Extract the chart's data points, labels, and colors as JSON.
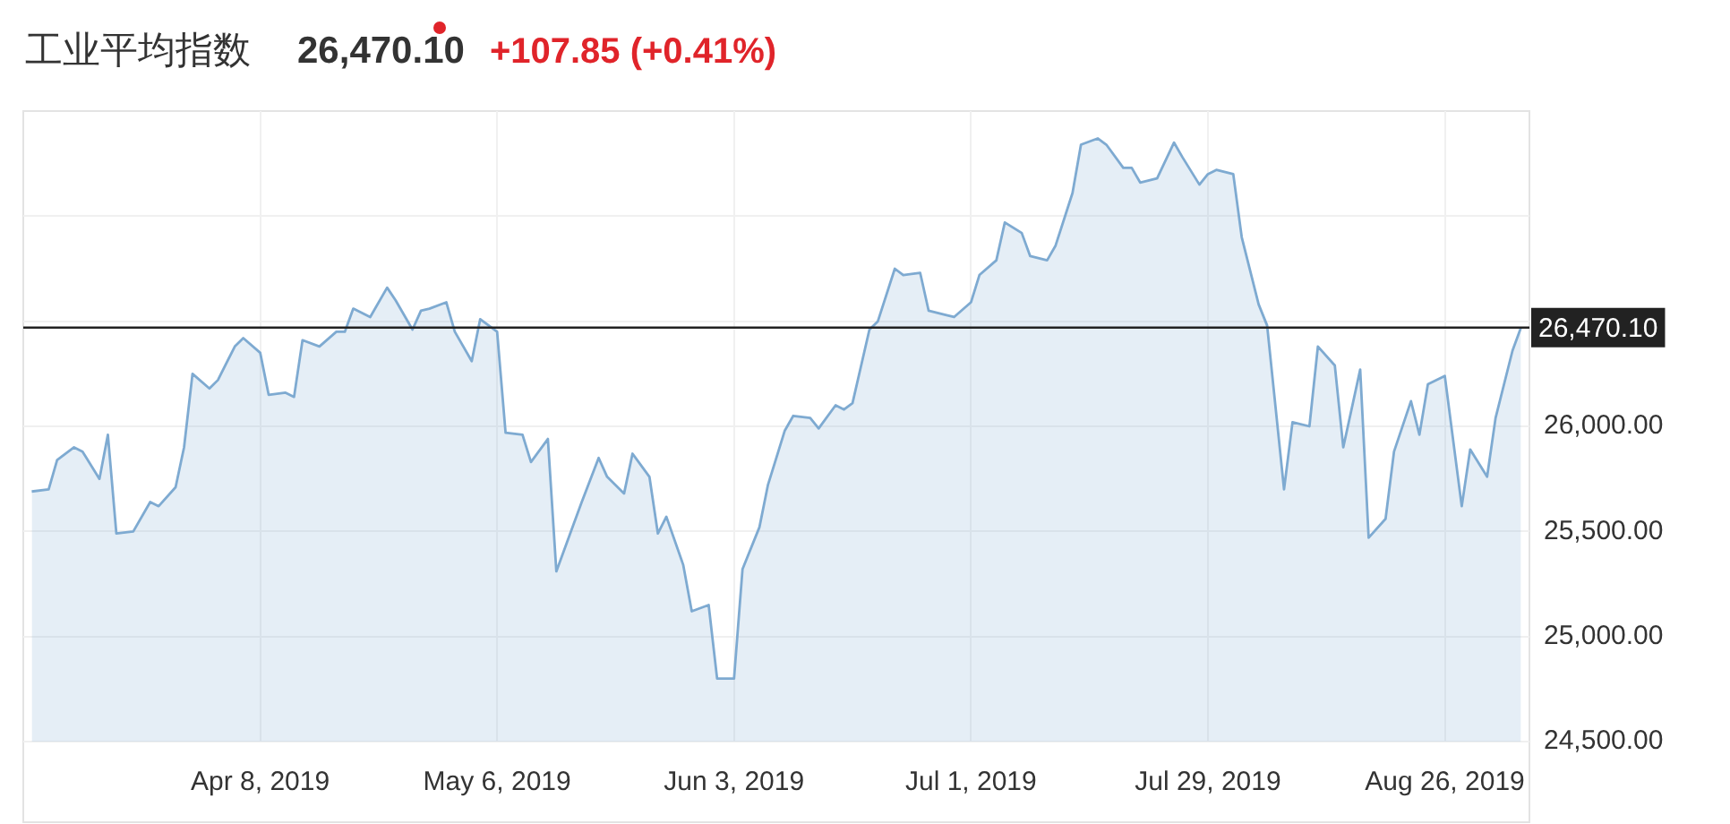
{
  "chart_data": {
    "type": "area",
    "title": "工业平均指数",
    "subtitle": "26,470.10",
    "annotations": [
      "+107.85 (+0.41%)"
    ],
    "x": [
      "2019-03-12",
      "2019-03-14",
      "2019-03-15",
      "2019-03-17",
      "2019-03-18",
      "2019-03-20",
      "2019-03-21",
      "2019-03-22",
      "2019-03-24",
      "2019-03-26",
      "2019-03-27",
      "2019-03-29",
      "2019-03-30",
      "2019-03-31",
      "2019-04-02",
      "2019-04-03",
      "2019-04-05",
      "2019-04-06",
      "2019-04-08",
      "2019-04-09",
      "2019-04-11",
      "2019-04-12",
      "2019-04-13",
      "2019-04-15",
      "2019-04-17",
      "2019-04-18",
      "2019-04-19",
      "2019-04-21",
      "2019-04-23",
      "2019-04-24",
      "2019-04-26",
      "2019-04-27",
      "2019-04-28",
      "2019-04-30",
      "2019-05-01",
      "2019-05-03",
      "2019-05-04",
      "2019-05-06",
      "2019-05-07",
      "2019-05-09",
      "2019-05-10",
      "2019-05-12",
      "2019-05-13",
      "2019-05-15",
      "2019-05-16",
      "2019-05-18",
      "2019-05-19",
      "2019-05-21",
      "2019-05-22",
      "2019-05-24",
      "2019-05-25",
      "2019-05-26",
      "2019-05-28",
      "2019-05-29",
      "2019-05-31",
      "2019-06-01",
      "2019-06-03",
      "2019-06-04",
      "2019-06-06",
      "2019-06-07",
      "2019-06-09",
      "2019-06-10",
      "2019-06-12",
      "2019-06-13",
      "2019-06-15",
      "2019-06-16",
      "2019-06-17",
      "2019-06-19",
      "2019-06-20",
      "2019-06-22",
      "2019-06-23",
      "2019-06-25",
      "2019-06-26",
      "2019-06-28",
      "2019-06-29",
      "2019-07-01",
      "2019-07-02",
      "2019-07-04",
      "2019-07-05",
      "2019-07-07",
      "2019-07-08",
      "2019-07-10",
      "2019-07-11",
      "2019-07-13",
      "2019-07-14",
      "2019-07-16",
      "2019-07-17",
      "2019-07-19",
      "2019-07-20",
      "2019-07-21",
      "2019-07-23",
      "2019-07-25",
      "2019-07-26",
      "2019-07-28",
      "2019-07-29",
      "2019-07-30",
      "2019-08-01",
      "2019-08-02",
      "2019-08-04",
      "2019-08-05",
      "2019-08-07",
      "2019-08-08",
      "2019-08-10",
      "2019-08-11",
      "2019-08-13",
      "2019-08-14",
      "2019-08-16",
      "2019-08-17",
      "2019-08-19",
      "2019-08-20",
      "2019-08-22",
      "2019-08-23",
      "2019-08-24",
      "2019-08-26",
      "2019-08-28",
      "2019-08-29",
      "2019-08-31",
      "2019-09-01",
      "2019-09-03",
      "2019-09-04"
    ],
    "series": [
      {
        "color": "#7eaad1",
        "values": [
          25690,
          25700,
          25840,
          25900,
          25880,
          25750,
          25960,
          25490,
          25500,
          25640,
          25620,
          25710,
          25900,
          26250,
          26180,
          26220,
          26380,
          26420,
          26350,
          26150,
          26160,
          26140,
          26410,
          26380,
          26450,
          26450,
          26560,
          26520,
          26660,
          26600,
          26460,
          26550,
          26560,
          26590,
          26450,
          26310,
          26510,
          26450,
          25970,
          25960,
          25830,
          25940,
          25310,
          25530,
          25640,
          25850,
          25760,
          25680,
          25870,
          25760,
          25490,
          25570,
          25340,
          25120,
          25150,
          24800,
          24800,
          25320,
          25520,
          25720,
          25980,
          26050,
          26040,
          25990,
          26100,
          26080,
          26110,
          26460,
          26500,
          26750,
          26720,
          26730,
          26550,
          26530,
          26520,
          26590,
          26720,
          26790,
          26970,
          26920,
          26810,
          26790,
          26860,
          27110,
          27340,
          27370,
          27340,
          27230,
          27230,
          27160,
          27180,
          27350,
          27280,
          27150,
          27200,
          27220,
          27200,
          26900,
          26580,
          26480,
          25700,
          26020,
          26000,
          26380,
          26290,
          25900,
          26270,
          25470,
          25560,
          25880,
          26120,
          25960,
          26200,
          26240,
          25620,
          25890,
          25760,
          26040,
          26360,
          26470.1
        ]
      }
    ],
    "xlim": [
      "2019-03-11",
      "2019-09-05"
    ],
    "xticks": [
      {
        "value": "2019-04-08",
        "label": "Apr 8, 2019"
      },
      {
        "value": "2019-05-06",
        "label": "May 6, 2019"
      },
      {
        "value": "2019-06-03",
        "label": "Jun 3, 2019"
      },
      {
        "value": "2019-07-01",
        "label": "Jul 1, 2019"
      },
      {
        "value": "2019-07-29",
        "label": "Jul 29, 2019"
      },
      {
        "value": "2019-08-26",
        "label": "Aug 26, 2019"
      }
    ],
    "ylim": [
      24500,
      27500
    ],
    "yticks": [
      {
        "value": 24500,
        "label": "24,500.00"
      },
      {
        "value": 25000,
        "label": "25,000.00"
      },
      {
        "value": 25500,
        "label": "25,500.00"
      },
      {
        "value": 26000,
        "label": "26,000.00"
      },
      {
        "value": 26500,
        "label": null
      },
      {
        "value": 27000,
        "label": null
      }
    ],
    "ref_lines": [
      {
        "axis": "y",
        "value": 26470.1,
        "label": "26,470.10",
        "color": "#222222"
      }
    ],
    "grid": true,
    "legend": false,
    "marker": "none",
    "line_style": "solid"
  }
}
